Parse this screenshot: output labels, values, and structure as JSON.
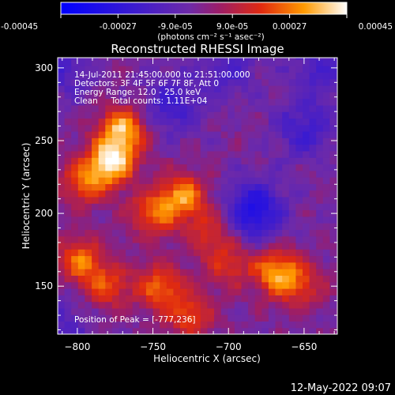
{
  "chart_data": {
    "type": "heatmap",
    "title": "Reconstructed RHESSI Image",
    "xlabel": "Heliocentric X (arcsec)",
    "ylabel": "Heliocentric Y (arcsec)",
    "xlim": [
      -813,
      -628
    ],
    "ylim": [
      117,
      307
    ],
    "x_ticks": [
      -800,
      -750,
      -700,
      -650
    ],
    "y_ticks": [
      150,
      200,
      250,
      300
    ],
    "colorbar": {
      "min": -0.00045,
      "max": 0.00045,
      "ticks": [
        "-0.00045",
        "-0.00027",
        "-9.0e-05",
        "9.0e-05",
        "0.00027",
        "0.00045"
      ],
      "unit_text": "(photons cm⁻² s⁻¹ asec⁻²)"
    },
    "annotations": [
      "14-Jul-2011 21:45:00.000 to 21:51:00.000",
      "Detectors: 3F 4F 5F 6F 7F 8F, Att 0",
      "Energy Range: 12.0 - 25.0 keV",
      "Clean     Total counts: 1.11E+04"
    ],
    "peak_label": "Position of Peak = [-777,236]",
    "peak": [
      -777,
      236
    ],
    "sources": [
      {
        "x": -777,
        "y": 236,
        "amp": 0.00042
      },
      {
        "x": -770,
        "y": 258,
        "amp": 0.00036
      },
      {
        "x": -795,
        "y": 222,
        "amp": 0.00026
      },
      {
        "x": -730,
        "y": 212,
        "amp": 0.00032
      },
      {
        "x": -750,
        "y": 200,
        "amp": 0.00025
      },
      {
        "x": -712,
        "y": 188,
        "amp": 0.00018
      },
      {
        "x": -798,
        "y": 168,
        "amp": 0.00027
      },
      {
        "x": -780,
        "y": 150,
        "amp": 0.00022
      },
      {
        "x": -745,
        "y": 150,
        "amp": 0.00026
      },
      {
        "x": -726,
        "y": 130,
        "amp": 0.00022
      },
      {
        "x": -700,
        "y": 165,
        "amp": 0.00018
      },
      {
        "x": -668,
        "y": 160,
        "amp": 0.00033
      },
      {
        "x": -652,
        "y": 150,
        "amp": 0.00017
      }
    ],
    "minima": [
      {
        "x": -683,
        "y": 202,
        "amp": -0.0003
      },
      {
        "x": -738,
        "y": 275,
        "amp": -0.00018
      },
      {
        "x": -650,
        "y": 258,
        "amp": -0.00018
      },
      {
        "x": -810,
        "y": 300,
        "amp": -0.00015
      },
      {
        "x": -700,
        "y": 300,
        "amp": -0.00014
      },
      {
        "x": -640,
        "y": 300,
        "amp": -0.00015
      },
      {
        "x": -810,
        "y": 125,
        "amp": -0.00012
      }
    ],
    "grid": false
  },
  "timestamp": "12-May-2022 09:07"
}
